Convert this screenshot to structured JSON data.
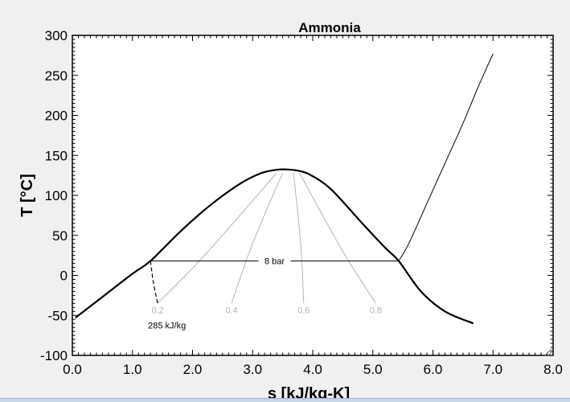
{
  "chart_data": {
    "type": "line",
    "title": "Ammonia",
    "xlabel": "s [kJ/kg-K]",
    "ylabel": "T [°C]",
    "xlim": [
      0.0,
      8.0
    ],
    "ylim": [
      -100,
      300
    ],
    "x_ticks": [
      0,
      1,
      2,
      3,
      4,
      5,
      6,
      7,
      8
    ],
    "x_tick_labels": [
      "0.0",
      "1.0",
      "2.0",
      "3.0",
      "4.0",
      "5.0",
      "6.0",
      "7.0",
      "8.0"
    ],
    "y_ticks": [
      -100,
      -50,
      0,
      50,
      100,
      150,
      200,
      250,
      300
    ],
    "y_tick_labels": [
      "-100",
      "-50",
      "0",
      "50",
      "100",
      "150",
      "200",
      "250",
      "300"
    ],
    "grid": false,
    "colors": {
      "primary": "#000000",
      "quality": "#b4b4b4",
      "frame": "#000000"
    },
    "saturation_dome": {
      "x": [
        0.05,
        0.5,
        1.0,
        1.3,
        1.8,
        2.3,
        2.8,
        3.15,
        3.4,
        3.55,
        3.75,
        3.95,
        4.3,
        4.8,
        5.2,
        5.43,
        5.8,
        6.2,
        6.67
      ],
      "y": [
        -53,
        -27,
        2,
        18,
        55,
        88,
        115,
        128,
        132,
        132.5,
        131,
        126,
        108,
        67,
        35,
        18,
        -20,
        -45,
        -60
      ]
    },
    "isobar": {
      "label": "8 bar",
      "x": [
        1.3,
        5.43,
        5.6,
        5.9,
        6.2,
        6.5,
        6.75,
        7.0
      ],
      "y": [
        18,
        18,
        40,
        90,
        140,
        190,
        235,
        277
      ]
    },
    "isenthalp": {
      "label": "285 kJ/kg",
      "x": [
        1.3,
        1.35,
        1.42
      ],
      "y": [
        18,
        -10,
        -35
      ]
    },
    "quality_lines": [
      {
        "label": "0.2",
        "x": [
          1.42,
          2.2,
          3.4
        ],
        "y": [
          -35,
          25,
          128
        ]
      },
      {
        "label": "0.4",
        "x": [
          2.65,
          3.0,
          3.5
        ],
        "y": [
          -35,
          40,
          128
        ]
      },
      {
        "label": "0.6",
        "x": [
          3.85,
          3.8,
          3.68
        ],
        "y": [
          -35,
          40,
          128
        ]
      },
      {
        "label": "0.8",
        "x": [
          5.05,
          4.5,
          3.78
        ],
        "y": [
          -35,
          30,
          128
        ]
      }
    ]
  }
}
